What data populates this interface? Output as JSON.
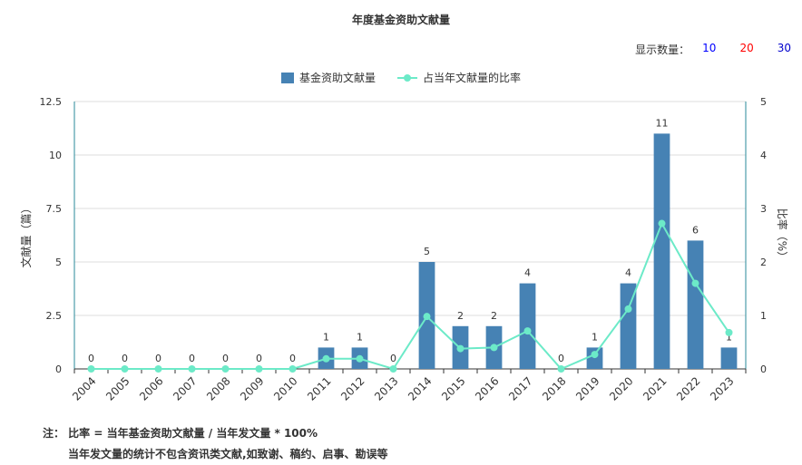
{
  "title": "年度基金资助文献量",
  "display_count": {
    "label": "显示数量：",
    "options": [
      {
        "value": "10",
        "color": "#0000ff"
      },
      {
        "value": "20",
        "color": "#ff0000"
      },
      {
        "value": "30",
        "color": "#0000cc"
      }
    ]
  },
  "colors": {
    "bar": "#4682b4",
    "line": "#6ceac8",
    "axis_right": "#2a8a9a"
  },
  "chart_data": {
    "type": "bar",
    "categories": [
      "2004",
      "2005",
      "2006",
      "2007",
      "2008",
      "2009",
      "2010",
      "2011",
      "2012",
      "2013",
      "2014",
      "2015",
      "2016",
      "2017",
      "2018",
      "2019",
      "2020",
      "2021",
      "2022",
      "2023"
    ],
    "series": [
      {
        "name": "基金资助文献量",
        "type": "bar",
        "axis": "left",
        "values": [
          0,
          0,
          0,
          0,
          0,
          0,
          0,
          1,
          1,
          0,
          5,
          2,
          2,
          4,
          0,
          1,
          4,
          11,
          6,
          1
        ]
      },
      {
        "name": "占当年文献量的比率",
        "type": "line",
        "axis": "right",
        "values": [
          0,
          0,
          0,
          0,
          0,
          0,
          0,
          0.19,
          0.19,
          0,
          0.98,
          0.38,
          0.4,
          0.71,
          0,
          0.27,
          1.12,
          2.72,
          1.6,
          0.68
        ]
      }
    ],
    "ylabel": "文献量（篇）",
    "ylabel_right": "比率（%）",
    "ylim": [
      0,
      12.5
    ],
    "yticks": [
      "0",
      "2.5",
      "5",
      "7.5",
      "10",
      "12.5"
    ],
    "ylim_right": [
      0,
      5
    ],
    "yticks_right": [
      "0",
      "1",
      "2",
      "3",
      "4",
      "5"
    ],
    "grid": true,
    "legend": "top-center"
  },
  "notes": [
    "注： 比率 = 当年基金资助文献量 / 当年发文量 * 100%",
    "当年发文量的统计不包含资讯类文献,如致谢、稿约、启事、勘误等"
  ]
}
